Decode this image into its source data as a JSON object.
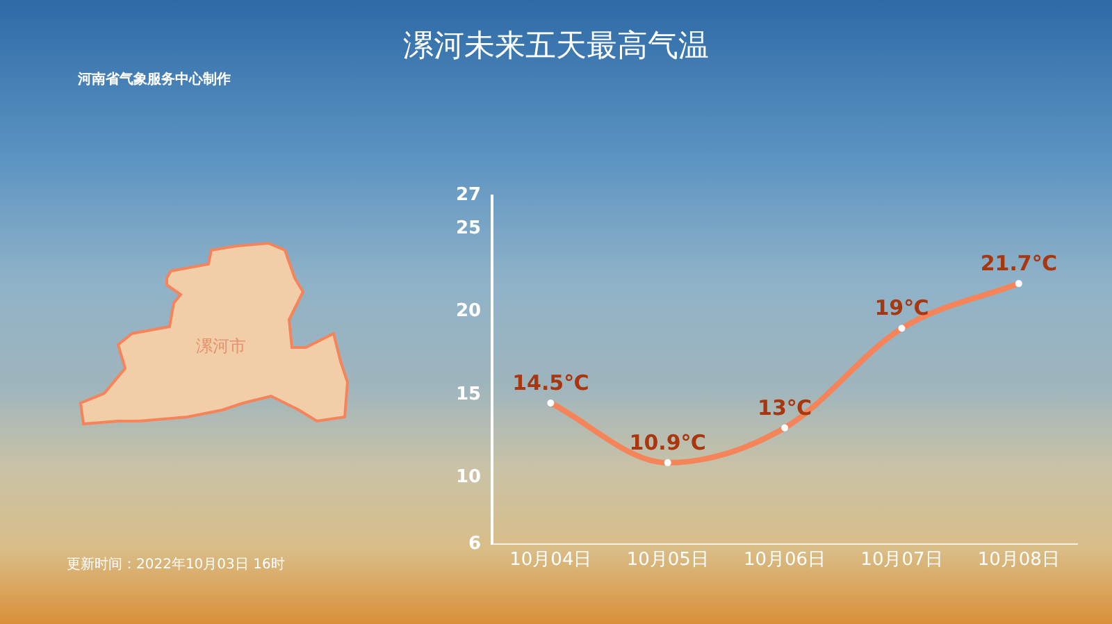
{
  "chart_data": {
    "type": "line",
    "title": "漯河未来五天最高气温",
    "categories": [
      "10月04日",
      "10月05日",
      "10月06日",
      "10月07日",
      "10月08日"
    ],
    "series": [
      {
        "color": "#f5845a",
        "values": [
          14.5,
          10.9,
          13,
          19,
          21.7
        ],
        "value_labels": [
          "14.5℃",
          "10.9℃",
          "13℃",
          "19℃",
          "21.7℃"
        ]
      }
    ],
    "ylim": [
      6,
      27
    ],
    "yticks": [
      6,
      10,
      15,
      20,
      25,
      27
    ],
    "grid": false,
    "legend": false,
    "marker": "circle",
    "line_style": "solid",
    "annotations": [
      "河南省气象服务中心制作",
      "漯河市",
      "更新时间：2022年10月03日 16时"
    ]
  }
}
